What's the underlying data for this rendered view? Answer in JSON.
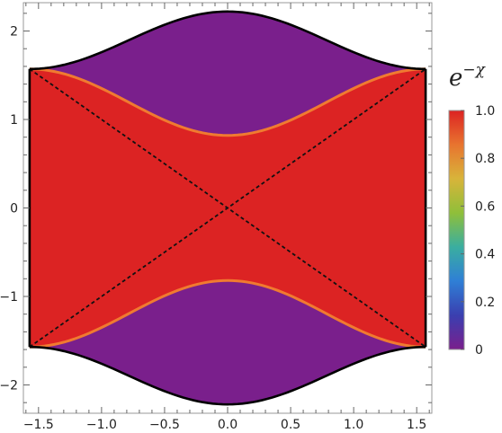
{
  "chart_data": {
    "type": "heatmap",
    "title": "",
    "xlabel": "",
    "ylabel": "",
    "xlim": [
      -1.62,
      1.62
    ],
    "ylim": [
      -2.32,
      2.32
    ],
    "x_ticks": [
      -1.5,
      -1.0,
      -0.5,
      0.0,
      0.5,
      1.0,
      1.5
    ],
    "x_tick_labels": [
      "−1.5",
      "−1.0",
      "−0.5",
      "0.0",
      "0.5",
      "1.0",
      "1.5"
    ],
    "y_ticks": [
      -2,
      -1,
      0,
      1,
      2
    ],
    "y_tick_labels": [
      "−2",
      "−1",
      "0",
      "1",
      "2"
    ],
    "domain_x_range": [
      -1.5708,
      1.5708
    ],
    "outer_boundary": {
      "y_at_x0": 2.22,
      "y_at_edges": 1.5708
    },
    "inner_boundary": {
      "y_at_x0": 0.82,
      "y_at_edges": 1.5708
    },
    "regions": [
      {
        "name": "outer",
        "value": 0.0,
        "color": "#7a1f8c"
      },
      {
        "name": "inner",
        "value": 1.0,
        "color": "#dc2323"
      }
    ],
    "transition_color": "#f07a30",
    "diagonals": [
      {
        "from": [
          -1.5708,
          1.5708
        ],
        "to": [
          1.5708,
          -1.5708
        ],
        "style": "dashed"
      },
      {
        "from": [
          -1.5708,
          -1.5708
        ],
        "to": [
          1.5708,
          1.5708
        ],
        "style": "dashed"
      }
    ],
    "colorbar": {
      "title_base": "e",
      "title_exponent": "−χ",
      "range": [
        0,
        1
      ],
      "ticks": [
        0,
        0.2,
        0.4,
        0.6,
        0.8,
        1.0
      ],
      "tick_labels": [
        "0",
        "0.2",
        "0.4",
        "0.6",
        "0.8",
        "1.0"
      ],
      "gradient": [
        "#7a1f8c",
        "#3a3fb0",
        "#2f7fd6",
        "#3aaea0",
        "#8fbf3a",
        "#d8b43a",
        "#e8742f",
        "#dc2323"
      ]
    }
  }
}
